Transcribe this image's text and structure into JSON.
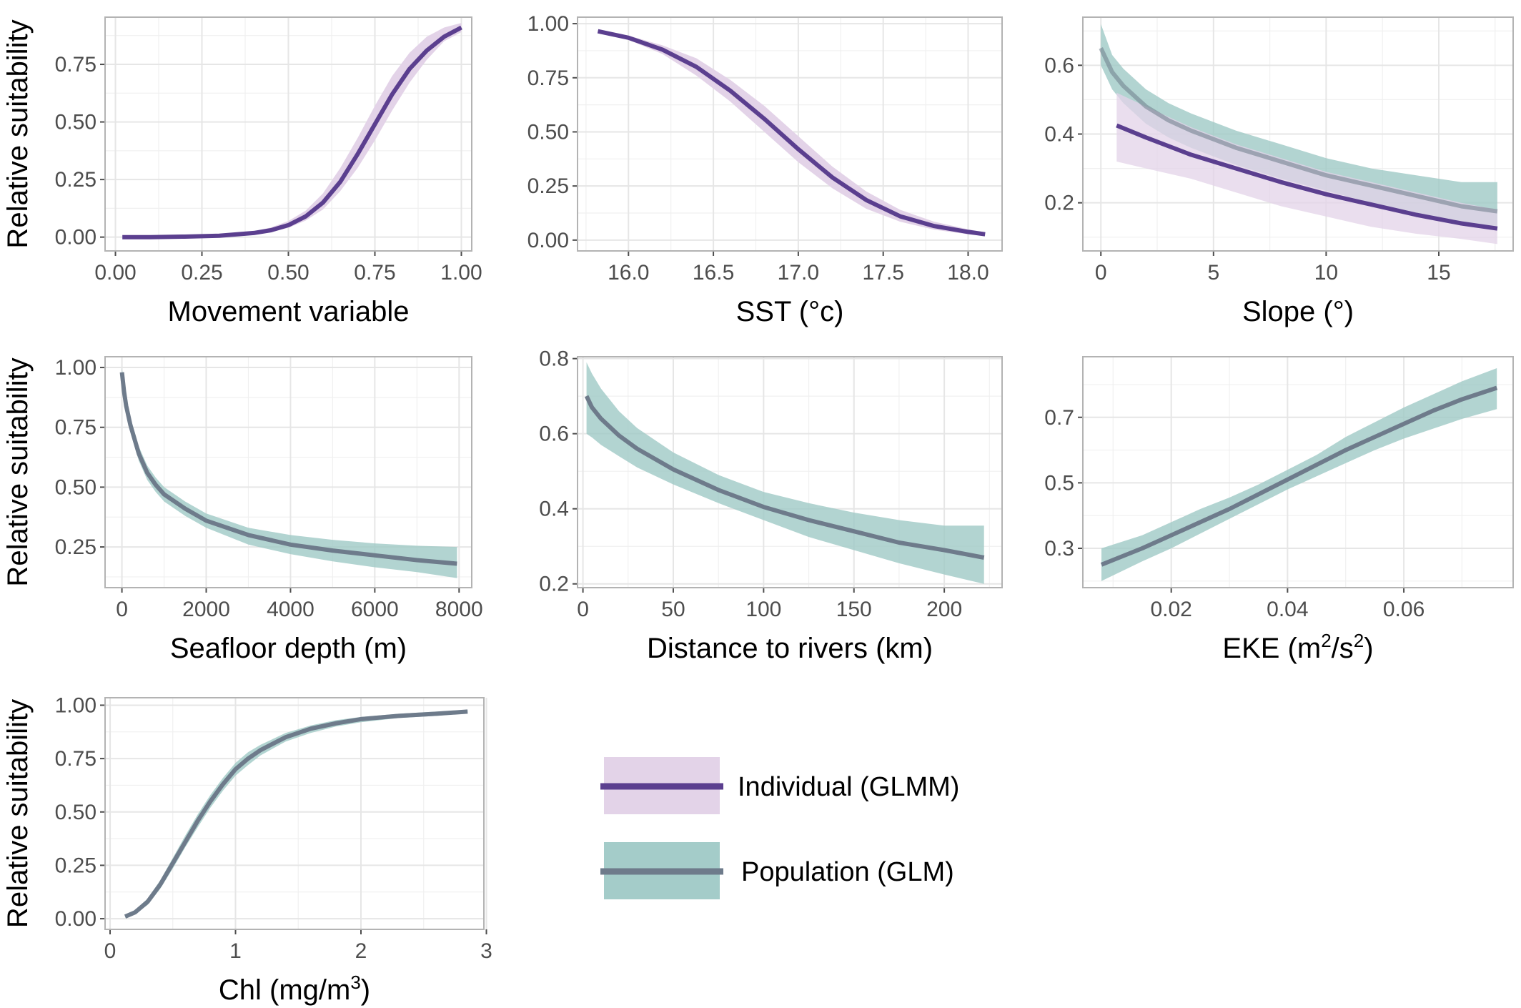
{
  "figure": {
    "colors": {
      "individual_line": "#5b3f8f",
      "individual_band": "#e3d3e8",
      "population_line": "#6e7b8b",
      "population_band": "#9fc9c6",
      "grid": "#e6e6e6",
      "panel_border": "#b3b3b3"
    },
    "legend": {
      "items": [
        {
          "label": "Individual (GLMM)",
          "series": "individual"
        },
        {
          "label": "Population (GLM)",
          "series": "population"
        }
      ]
    }
  },
  "chart_data": [
    {
      "type": "line",
      "xlabel": "Movement variable",
      "ylabel": "Relative suitability",
      "xlim": [
        -0.03,
        1.03
      ],
      "ylim": [
        -0.06,
        0.955
      ],
      "xticks": [
        0,
        0.25,
        0.5,
        0.75,
        1
      ],
      "xtick_labels": [
        "0.00",
        "0.25",
        "0.50",
        "0.75",
        "1.00"
      ],
      "yticks": [
        0,
        0.25,
        0.5,
        0.75
      ],
      "ytick_labels": [
        "0.00",
        "0.25",
        "0.50",
        "0.75"
      ],
      "grid": true,
      "series": [
        {
          "name": "Individual (GLMM)",
          "kind": "individual",
          "x": [
            0.02,
            0.1,
            0.2,
            0.3,
            0.4,
            0.45,
            0.5,
            0.55,
            0.6,
            0.65,
            0.7,
            0.75,
            0.8,
            0.85,
            0.9,
            0.95,
            1.0
          ],
          "y": [
            0.0,
            0.0,
            0.002,
            0.006,
            0.018,
            0.03,
            0.052,
            0.09,
            0.15,
            0.24,
            0.36,
            0.49,
            0.62,
            0.73,
            0.81,
            0.87,
            0.91
          ],
          "lower": [
            0.0,
            0.0,
            0.001,
            0.004,
            0.012,
            0.022,
            0.04,
            0.072,
            0.12,
            0.2,
            0.3,
            0.42,
            0.55,
            0.67,
            0.77,
            0.85,
            0.89
          ],
          "upper": [
            0.0,
            0.001,
            0.003,
            0.009,
            0.025,
            0.042,
            0.07,
            0.115,
            0.19,
            0.3,
            0.43,
            0.57,
            0.7,
            0.8,
            0.87,
            0.91,
            0.93
          ]
        }
      ]
    },
    {
      "type": "line",
      "xlabel": "SST (°c)",
      "ylabel": "",
      "xlim": [
        15.7,
        18.2
      ],
      "ylim": [
        -0.05,
        1.03
      ],
      "xticks": [
        16,
        16.5,
        17,
        17.5,
        18
      ],
      "xtick_labels": [
        "16.0",
        "16.5",
        "17.0",
        "17.5",
        "18.0"
      ],
      "yticks": [
        0,
        0.25,
        0.5,
        0.75,
        1
      ],
      "ytick_labels": [
        "0.00",
        "0.25",
        "0.50",
        "0.75",
        "1.00"
      ],
      "grid": true,
      "series": [
        {
          "name": "Individual (GLMM)",
          "kind": "individual",
          "x": [
            15.82,
            16.0,
            16.2,
            16.4,
            16.6,
            16.8,
            17.0,
            17.2,
            17.4,
            17.6,
            17.8,
            18.0,
            18.1
          ],
          "y": [
            0.965,
            0.935,
            0.88,
            0.8,
            0.69,
            0.56,
            0.42,
            0.29,
            0.185,
            0.11,
            0.065,
            0.038,
            0.027
          ],
          "lower": [
            0.96,
            0.925,
            0.86,
            0.76,
            0.64,
            0.5,
            0.36,
            0.24,
            0.145,
            0.085,
            0.048,
            0.027,
            0.02
          ],
          "upper": [
            0.97,
            0.945,
            0.9,
            0.84,
            0.74,
            0.62,
            0.48,
            0.34,
            0.225,
            0.14,
            0.085,
            0.05,
            0.036
          ]
        }
      ]
    },
    {
      "type": "line",
      "xlabel": "Slope (°)",
      "ylabel": "",
      "xlim": [
        -0.8,
        18.3
      ],
      "ylim": [
        0.06,
        0.74
      ],
      "xticks": [
        0,
        5,
        10,
        15
      ],
      "xtick_labels": [
        "0",
        "5",
        "10",
        "15"
      ],
      "yticks": [
        0.2,
        0.4,
        0.6
      ],
      "ytick_labels": [
        "0.2",
        "0.4",
        "0.6"
      ],
      "grid": true,
      "series": [
        {
          "name": "Population (GLM)",
          "kind": "population",
          "x": [
            0,
            0.5,
            1,
            2,
            3,
            4,
            6,
            8,
            10,
            12,
            14,
            16,
            17.6
          ],
          "y": [
            0.65,
            0.58,
            0.54,
            0.48,
            0.44,
            0.41,
            0.36,
            0.32,
            0.28,
            0.25,
            0.22,
            0.19,
            0.175
          ],
          "lower": [
            0.6,
            0.53,
            0.49,
            0.43,
            0.39,
            0.36,
            0.31,
            0.27,
            0.235,
            0.2,
            0.17,
            0.14,
            0.12
          ],
          "upper": [
            0.72,
            0.63,
            0.59,
            0.53,
            0.49,
            0.46,
            0.41,
            0.37,
            0.33,
            0.3,
            0.28,
            0.26,
            0.26
          ]
        },
        {
          "name": "Individual (GLMM)",
          "kind": "individual",
          "x": [
            0.7,
            2,
            4,
            6,
            8,
            10,
            12,
            14,
            16,
            17.6
          ],
          "y": [
            0.425,
            0.39,
            0.34,
            0.3,
            0.26,
            0.225,
            0.195,
            0.165,
            0.14,
            0.125
          ],
          "lower": [
            0.32,
            0.3,
            0.27,
            0.23,
            0.19,
            0.16,
            0.13,
            0.11,
            0.095,
            0.08
          ],
          "upper": [
            0.52,
            0.48,
            0.42,
            0.37,
            0.33,
            0.29,
            0.26,
            0.23,
            0.2,
            0.18
          ]
        }
      ]
    },
    {
      "type": "line",
      "xlabel": "Seafloor depth (m)",
      "ylabel": "Relative suitability",
      "xlim": [
        -400,
        8300
      ],
      "ylim": [
        0.08,
        1.045
      ],
      "xticks": [
        0,
        2000,
        4000,
        6000,
        8000
      ],
      "xtick_labels": [
        "0",
        "2000",
        "4000",
        "6000",
        "8000"
      ],
      "yticks": [
        0.25,
        0.5,
        0.75,
        1
      ],
      "ytick_labels": [
        "0.25",
        "0.50",
        "0.75",
        "1.00"
      ],
      "grid": true,
      "series": [
        {
          "name": "Population (GLM)",
          "kind": "population",
          "x": [
            0,
            50,
            100,
            200,
            300,
            400,
            600,
            800,
            1000,
            1500,
            2000,
            3000,
            4000,
            5000,
            6000,
            7000,
            7950
          ],
          "y": [
            0.98,
            0.9,
            0.84,
            0.76,
            0.7,
            0.64,
            0.56,
            0.51,
            0.47,
            0.41,
            0.36,
            0.3,
            0.26,
            0.235,
            0.215,
            0.195,
            0.18
          ],
          "lower": [
            0.95,
            0.87,
            0.81,
            0.73,
            0.67,
            0.61,
            0.53,
            0.48,
            0.44,
            0.38,
            0.33,
            0.26,
            0.22,
            0.19,
            0.165,
            0.145,
            0.12
          ],
          "upper": [
            1.0,
            0.93,
            0.87,
            0.79,
            0.73,
            0.67,
            0.59,
            0.54,
            0.5,
            0.44,
            0.39,
            0.33,
            0.3,
            0.28,
            0.265,
            0.255,
            0.25
          ]
        }
      ]
    },
    {
      "type": "line",
      "xlabel": "Distance to rivers (km)",
      "ylabel": "",
      "xlim": [
        -3,
        232
      ],
      "ylim": [
        0.19,
        0.805
      ],
      "xticks": [
        0,
        50,
        100,
        150,
        200
      ],
      "xtick_labels": [
        "0",
        "50",
        "100",
        "150",
        "200"
      ],
      "yticks": [
        0.2,
        0.4,
        0.6,
        0.8
      ],
      "ytick_labels": [
        "0.2",
        "0.4",
        "0.6",
        "0.8"
      ],
      "grid": true,
      "series": [
        {
          "name": "Population (GLM)",
          "kind": "population",
          "x": [
            2,
            5,
            10,
            20,
            30,
            50,
            75,
            100,
            125,
            150,
            175,
            200,
            222
          ],
          "y": [
            0.7,
            0.67,
            0.64,
            0.595,
            0.56,
            0.505,
            0.45,
            0.405,
            0.37,
            0.34,
            0.31,
            0.29,
            0.27
          ],
          "lower": [
            0.6,
            0.59,
            0.57,
            0.54,
            0.51,
            0.465,
            0.415,
            0.37,
            0.325,
            0.29,
            0.255,
            0.225,
            0.2
          ],
          "upper": [
            0.79,
            0.76,
            0.72,
            0.66,
            0.615,
            0.55,
            0.49,
            0.445,
            0.415,
            0.39,
            0.37,
            0.355,
            0.355
          ]
        }
      ]
    },
    {
      "type": "line",
      "xlabel": "EKE (m²/s²)",
      "ylabel": "",
      "xlim": [
        0.0048,
        0.0788
      ],
      "ylim": [
        0.18,
        0.885
      ],
      "xticks": [
        0.02,
        0.04,
        0.06
      ],
      "xtick_labels": [
        "0.02",
        "0.04",
        "0.06"
      ],
      "yticks": [
        0.3,
        0.5,
        0.7
      ],
      "ytick_labels": [
        "0.3",
        "0.5",
        "0.7"
      ],
      "grid": true,
      "series": [
        {
          "name": "Population (GLM)",
          "kind": "population",
          "x": [
            0.008,
            0.015,
            0.02,
            0.025,
            0.03,
            0.035,
            0.04,
            0.045,
            0.05,
            0.055,
            0.06,
            0.065,
            0.07,
            0.076
          ],
          "y": [
            0.25,
            0.3,
            0.34,
            0.38,
            0.42,
            0.465,
            0.51,
            0.555,
            0.6,
            0.64,
            0.68,
            0.72,
            0.755,
            0.79
          ],
          "lower": [
            0.2,
            0.26,
            0.3,
            0.345,
            0.39,
            0.435,
            0.48,
            0.52,
            0.56,
            0.6,
            0.635,
            0.665,
            0.695,
            0.725
          ],
          "upper": [
            0.3,
            0.34,
            0.38,
            0.42,
            0.455,
            0.495,
            0.54,
            0.585,
            0.64,
            0.685,
            0.73,
            0.77,
            0.81,
            0.85
          ]
        }
      ]
    },
    {
      "type": "line",
      "xlabel": "Chl (mg/m³)",
      "ylabel": "Relative suitability",
      "xlim": [
        -0.04,
        2.98
      ],
      "ylim": [
        -0.05,
        1.035
      ],
      "xticks": [
        0,
        1,
        2,
        3
      ],
      "xtick_labels": [
        "0",
        "1",
        "2",
        "3"
      ],
      "yticks": [
        0,
        0.25,
        0.5,
        0.75,
        1
      ],
      "ytick_labels": [
        "0.00",
        "0.25",
        "0.50",
        "0.75",
        "1.00"
      ],
      "grid": true,
      "series": [
        {
          "name": "Population (GLM)",
          "kind": "population",
          "x": [
            0.12,
            0.2,
            0.3,
            0.4,
            0.5,
            0.6,
            0.7,
            0.8,
            0.9,
            1.0,
            1.1,
            1.2,
            1.4,
            1.6,
            1.8,
            2.0,
            2.3,
            2.6,
            2.85
          ],
          "y": [
            0.01,
            0.03,
            0.08,
            0.16,
            0.26,
            0.36,
            0.46,
            0.55,
            0.63,
            0.7,
            0.75,
            0.79,
            0.85,
            0.89,
            0.915,
            0.935,
            0.95,
            0.96,
            0.97
          ],
          "lower": [
            0.005,
            0.022,
            0.065,
            0.14,
            0.235,
            0.335,
            0.43,
            0.52,
            0.6,
            0.67,
            0.72,
            0.765,
            0.83,
            0.87,
            0.9,
            0.92,
            0.94,
            0.95,
            0.962
          ],
          "upper": [
            0.015,
            0.04,
            0.095,
            0.18,
            0.285,
            0.39,
            0.49,
            0.58,
            0.66,
            0.73,
            0.78,
            0.815,
            0.87,
            0.905,
            0.93,
            0.945,
            0.96,
            0.97,
            0.978
          ]
        }
      ]
    }
  ]
}
